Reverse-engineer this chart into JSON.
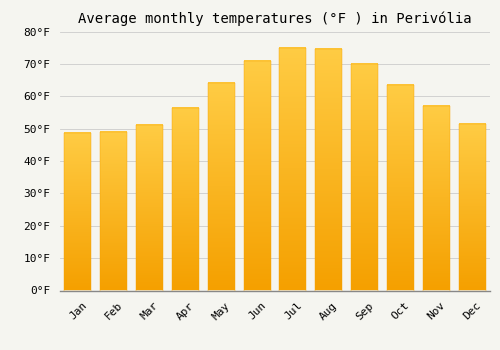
{
  "title": "Average monthly temperatures (°F ) in Perivólia",
  "months": [
    "Jan",
    "Feb",
    "Mar",
    "Apr",
    "May",
    "Jun",
    "Jul",
    "Aug",
    "Sep",
    "Oct",
    "Nov",
    "Dec"
  ],
  "values": [
    48.5,
    49.0,
    51.0,
    56.5,
    64.0,
    71.0,
    75.0,
    74.5,
    70.0,
    63.5,
    57.0,
    51.5
  ],
  "bar_color_top": "#FFCC44",
  "bar_color_bottom": "#F5A000",
  "background_color": "#F5F5F0",
  "ylim": [
    0,
    80
  ],
  "yticks": [
    0,
    10,
    20,
    30,
    40,
    50,
    60,
    70,
    80
  ],
  "ytick_labels": [
    "0°F",
    "10°F",
    "20°F",
    "30°F",
    "40°F",
    "50°F",
    "60°F",
    "70°F",
    "80°F"
  ],
  "grid_color": "#CCCCCC",
  "title_fontsize": 10,
  "tick_fontsize": 8,
  "font_family": "monospace",
  "bar_width": 0.75
}
